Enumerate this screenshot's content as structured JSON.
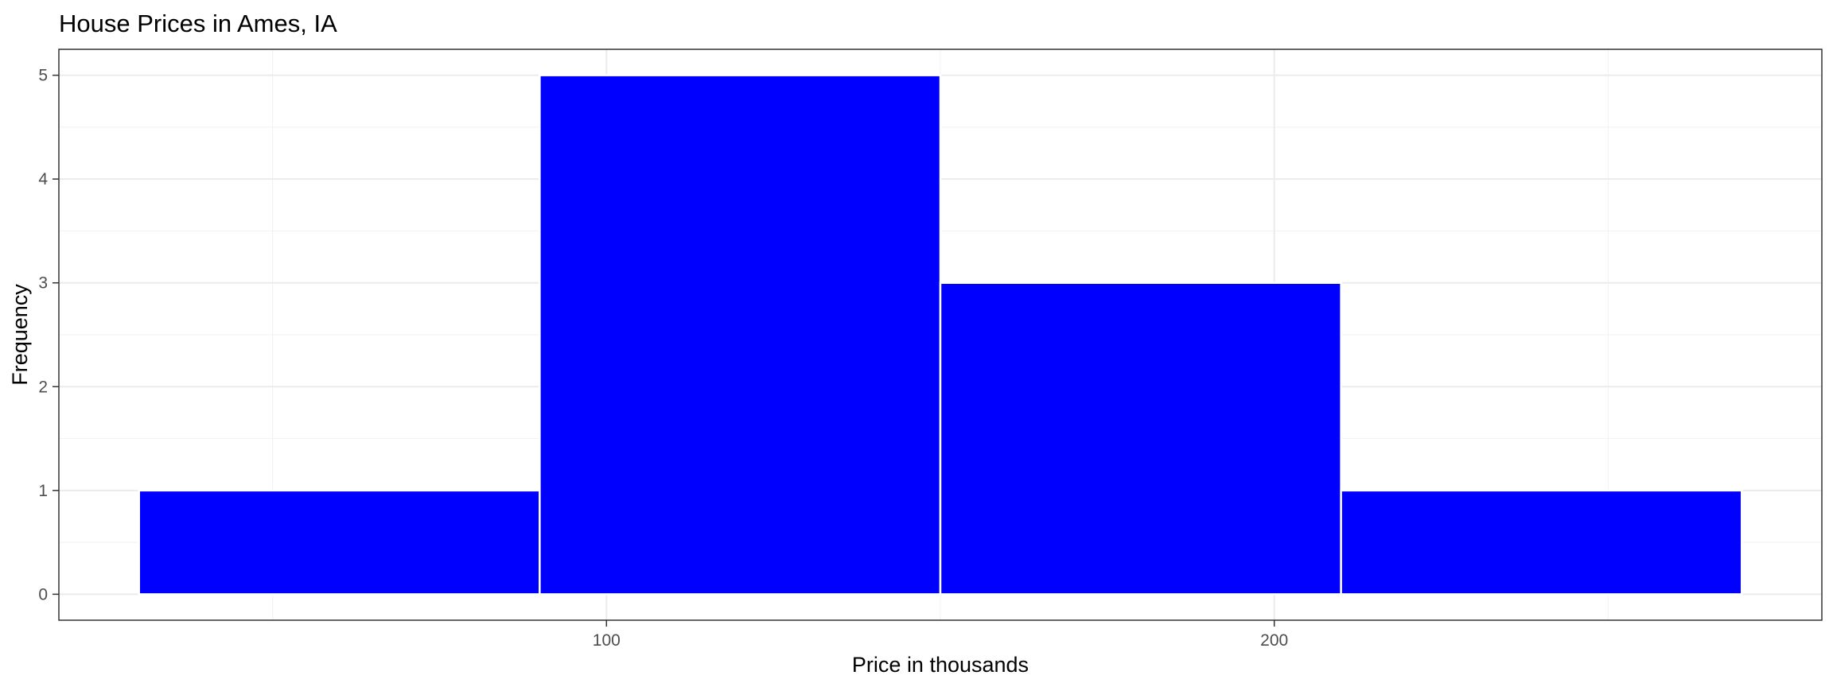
{
  "chart_data": {
    "type": "bar",
    "subtype": "histogram",
    "title": "House Prices in Ames, IA",
    "xlabel": "Price in thousands",
    "ylabel": "Frequency",
    "bins": [
      {
        "start": 30,
        "end": 90,
        "count": 1
      },
      {
        "start": 90,
        "end": 150,
        "count": 5
      },
      {
        "start": 150,
        "end": 210,
        "count": 3
      },
      {
        "start": 210,
        "end": 270,
        "count": 1
      }
    ],
    "xlim": [
      18,
      282
    ],
    "ylim": [
      -0.25,
      5.25
    ],
    "x_ticks": [
      100,
      200
    ],
    "x_minor_ticks": [
      50,
      150,
      250
    ],
    "y_ticks": [
      0,
      1,
      2,
      3,
      4,
      5
    ],
    "y_minor_ticks": [
      0.5,
      1.5,
      2.5,
      3.5,
      4.5
    ],
    "grid": true,
    "bar_fill": "#0000ff",
    "bar_outline": "#ffffff",
    "panel_border": "#333333"
  }
}
